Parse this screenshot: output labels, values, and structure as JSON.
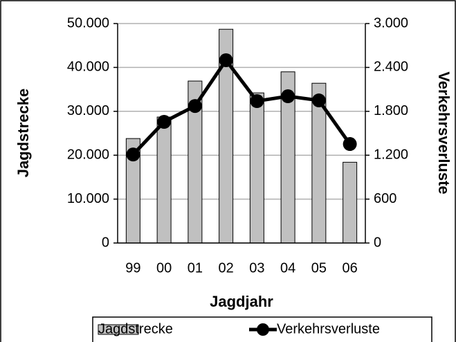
{
  "chart_data": {
    "type": "bar",
    "xlabel": "Jagdjahr",
    "ylabel": "Jagdstrecke",
    "y2label": "Verkehrsverluste",
    "categories": [
      "99",
      "00",
      "01",
      "02",
      "03",
      "04",
      "05",
      "06"
    ],
    "series": [
      {
        "name": "Jagdstrecke",
        "type": "bar",
        "color": "#c0c0c0",
        "values": [
          23800,
          28700,
          36900,
          48700,
          34200,
          39000,
          36400,
          18400
        ]
      },
      {
        "name": "Verkehrsverluste",
        "type": "line",
        "axis": "y2",
        "color": "#000000",
        "values": [
          1210,
          1656,
          1873,
          2498,
          1940,
          2006,
          1949,
          1353
        ]
      }
    ],
    "ylim": [
      0,
      50000
    ],
    "yticks": [
      0,
      {
        "value": 10000,
        "label": "10.000"
      },
      {
        "value": 20000,
        "label": "20.000"
      },
      {
        "value": 30000,
        "label": "30.000"
      },
      {
        "value": 40000,
        "label": "40.000"
      },
      {
        "value": 50000,
        "label": "50.000"
      }
    ],
    "y2lim": [
      0,
      3000
    ],
    "y2ticks": [
      0,
      600,
      {
        "value": 1200,
        "label": "1.200"
      },
      {
        "value": 1800,
        "label": "1.800"
      },
      {
        "value": 2400,
        "label": "2.400"
      },
      {
        "value": 3000,
        "label": "3.000"
      }
    ],
    "grid": true,
    "legend": "bottom"
  }
}
